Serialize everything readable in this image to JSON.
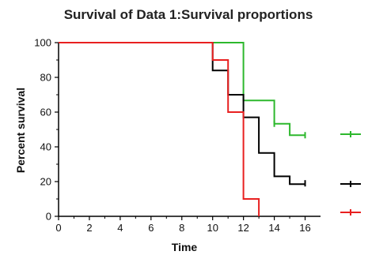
{
  "chart_data": {
    "type": "line",
    "step": true,
    "title": "Survival of Data 1:Survival proportions",
    "xlabel": "Time",
    "ylabel": "Percent survival",
    "xlim": [
      0,
      17
    ],
    "ylim": [
      0,
      100
    ],
    "xticks": [
      "0",
      "2",
      "4",
      "6",
      "8",
      "10",
      "12",
      "14",
      "16"
    ],
    "yticks": [
      "0",
      "20",
      "40",
      "60",
      "80",
      "100"
    ],
    "grid": false,
    "legend": "right",
    "series": [
      {
        "color": "#2db82d",
        "points": [
          [
            0,
            100
          ],
          [
            12,
            100
          ],
          [
            12,
            66.7
          ],
          [
            14,
            66.7
          ],
          [
            14,
            53.3
          ],
          [
            15,
            53.3
          ],
          [
            15,
            46.7
          ],
          [
            16,
            46.7
          ]
        ],
        "censored": [
          [
            14,
            53.3
          ],
          [
            16,
            46.7
          ]
        ]
      },
      {
        "color": "#000000",
        "points": [
          [
            0,
            100
          ],
          [
            10,
            100
          ],
          [
            10,
            84
          ],
          [
            11,
            84
          ],
          [
            11,
            70
          ],
          [
            12,
            70
          ],
          [
            12,
            57
          ],
          [
            13,
            57
          ],
          [
            13,
            36.5
          ],
          [
            14,
            36.5
          ],
          [
            14,
            23
          ],
          [
            15,
            23
          ],
          [
            15,
            18.5
          ],
          [
            16,
            18.5
          ]
        ],
        "censored": [
          [
            16,
            19
          ]
        ]
      },
      {
        "color": "#e82020",
        "points": [
          [
            0,
            100
          ],
          [
            10,
            100
          ],
          [
            10,
            90
          ],
          [
            11,
            90
          ],
          [
            11,
            60
          ],
          [
            12,
            60
          ],
          [
            12,
            10
          ],
          [
            13,
            10
          ],
          [
            13,
            0
          ]
        ],
        "censored": []
      }
    ]
  }
}
